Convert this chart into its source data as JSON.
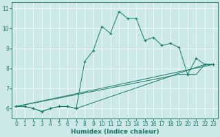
{
  "xlabel": "Humidex (Indice chaleur)",
  "bg_color": "#cce8e8",
  "grid_color": "#ffffff",
  "line_color": "#1a7a6a",
  "xlim": [
    -0.5,
    23.5
  ],
  "ylim": [
    5.5,
    11.3
  ],
  "yticks": [
    6,
    7,
    8,
    9,
    10,
    11
  ],
  "xticks": [
    0,
    1,
    2,
    3,
    4,
    5,
    6,
    7,
    8,
    9,
    10,
    11,
    12,
    13,
    14,
    15,
    16,
    17,
    18,
    19,
    20,
    21,
    22,
    23
  ],
  "series": [
    {
      "x": [
        0,
        1,
        2,
        3,
        4,
        5,
        6,
        7,
        22,
        23
      ],
      "y": [
        6.1,
        6.1,
        6.0,
        5.85,
        6.0,
        6.1,
        6.1,
        6.0,
        8.2,
        8.2
      ]
    },
    {
      "x": [
        0,
        23
      ],
      "y": [
        6.1,
        8.2
      ]
    },
    {
      "x": [
        0,
        19,
        20,
        21,
        22,
        23
      ],
      "y": [
        6.1,
        7.7,
        7.7,
        7.7,
        8.2,
        8.2
      ]
    },
    {
      "x": [
        0,
        1,
        2,
        3,
        4,
        5,
        6,
        7,
        8,
        9,
        10,
        11,
        12,
        13,
        14,
        15,
        16,
        17,
        18,
        19,
        20,
        21,
        22,
        23
      ],
      "y": [
        6.1,
        6.1,
        6.0,
        5.85,
        6.0,
        6.1,
        6.1,
        6.0,
        8.35,
        8.9,
        10.1,
        9.75,
        10.85,
        10.5,
        10.5,
        9.4,
        9.55,
        9.15,
        9.25,
        9.05,
        7.7,
        8.5,
        8.2,
        8.2
      ]
    }
  ]
}
